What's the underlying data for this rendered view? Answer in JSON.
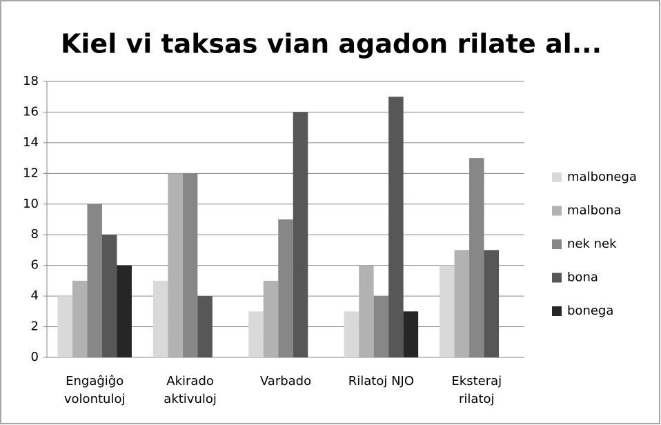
{
  "chart_data": {
    "type": "bar",
    "title": "Kiel vi taksas vian agadon rilate al...",
    "categories": [
      "Engaĝiĝo volontuloj",
      "Akirado aktivuloj",
      "Varbado",
      "Rilatoj NJO",
      "Eksteraj rilatoj"
    ],
    "series": [
      {
        "name": "malbonega",
        "color": "#d9d9d9",
        "values": [
          4,
          5,
          3,
          3,
          6
        ]
      },
      {
        "name": "malbona",
        "color": "#b2b2b2",
        "values": [
          5,
          12,
          5,
          6,
          7
        ]
      },
      {
        "name": "nek nek",
        "color": "#878787",
        "values": [
          10,
          12,
          9,
          4,
          13
        ]
      },
      {
        "name": "bona",
        "color": "#575757",
        "values": [
          8,
          4,
          16,
          17,
          7
        ]
      },
      {
        "name": "bonega",
        "color": "#262626",
        "values": [
          6,
          0,
          0,
          3,
          0
        ]
      }
    ],
    "ylim": [
      0,
      18
    ],
    "yticks": [
      0,
      2,
      4,
      6,
      8,
      10,
      12,
      14,
      16,
      18
    ],
    "grid": true,
    "legend": "right"
  }
}
